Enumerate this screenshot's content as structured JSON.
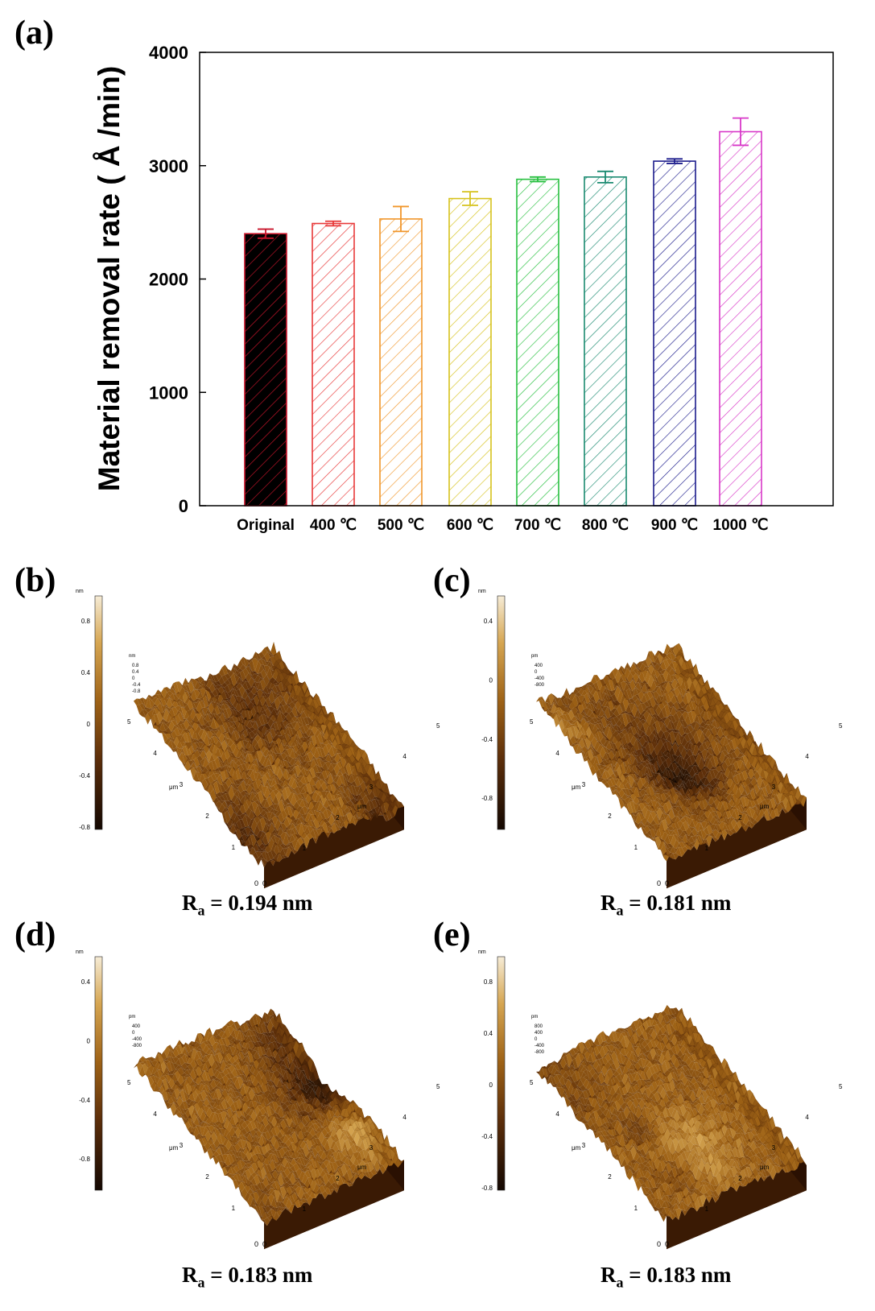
{
  "panels": {
    "a": "(a)",
    "b": "(b)",
    "c": "(c)",
    "d": "(d)",
    "e": "(e)"
  },
  "chart_data": {
    "type": "bar",
    "title": "",
    "ylabel": "Material removal rate ( Å /min)",
    "xlabel": "",
    "ylim": [
      0,
      4000
    ],
    "yticks": [
      "0",
      "1000",
      "2000",
      "3000",
      "4000"
    ],
    "grid": false,
    "categories": [
      "Original",
      "400 ℃",
      "500 ℃",
      "600 ℃",
      "700 ℃",
      "800 ℃",
      "900 ℃",
      "1000 ℃"
    ],
    "values": [
      2400,
      2490,
      2530,
      2710,
      2880,
      2900,
      3040,
      3300
    ],
    "errors": [
      40,
      20,
      110,
      60,
      20,
      50,
      20,
      120
    ],
    "colors": [
      "#c8142a",
      "#e83838",
      "#f0962a",
      "#d6c21c",
      "#28c040",
      "#1a8a70",
      "#1c1c8c",
      "#d838c8"
    ],
    "fill_style": [
      "solid-black-hatched",
      "hatched",
      "hatched",
      "hatched",
      "hatched",
      "hatched",
      "hatched",
      "hatched"
    ]
  },
  "afm_panels": [
    {
      "id": "b",
      "ra_label": "R",
      "ra_sub": "a",
      "ra_value": " = 0.194 nm",
      "colorbar_unit": "nm",
      "colorbar_ticks": [
        "0.8",
        "0.4",
        "0",
        "-0.4",
        "-0.8"
      ],
      "z_unit": "nm",
      "z_ticks": [
        "0.8",
        "0.4",
        "0",
        "-0.4",
        "-0.8"
      ],
      "xy_unit": "μm",
      "axis_ticks": [
        "0",
        "1",
        "2",
        "3",
        "4",
        "5"
      ]
    },
    {
      "id": "c",
      "ra_label": "R",
      "ra_sub": "a",
      "ra_value": " = 0.181 nm",
      "colorbar_unit": "nm",
      "colorbar_ticks": [
        "0.4",
        "0",
        "-0.4",
        "-0.8"
      ],
      "z_unit": "pm",
      "z_ticks": [
        "400",
        "0",
        "-400",
        "-800"
      ],
      "xy_unit": "μm",
      "axis_ticks": [
        "0",
        "1",
        "2",
        "3",
        "4",
        "5"
      ]
    },
    {
      "id": "d",
      "ra_label": "R",
      "ra_sub": "a",
      "ra_value": " = 0.183 nm",
      "colorbar_unit": "nm",
      "colorbar_ticks": [
        "0.4",
        "0",
        "-0.4",
        "-0.8"
      ],
      "z_unit": "pm",
      "z_ticks": [
        "400",
        "0",
        "-400",
        "-800"
      ],
      "xy_unit": "μm",
      "axis_ticks": [
        "0",
        "1",
        "2",
        "3",
        "4",
        "5"
      ]
    },
    {
      "id": "e",
      "ra_label": "R",
      "ra_sub": "a",
      "ra_value": " = 0.183 nm",
      "colorbar_unit": "nm",
      "colorbar_ticks": [
        "0.8",
        "0.4",
        "0",
        "-0.4",
        "-0.8"
      ],
      "z_unit": "pm",
      "z_ticks": [
        "800",
        "400",
        "0",
        "-400",
        "-800"
      ],
      "xy_unit": "μm",
      "axis_ticks": [
        "0",
        "1",
        "2",
        "3",
        "4",
        "5"
      ]
    }
  ]
}
